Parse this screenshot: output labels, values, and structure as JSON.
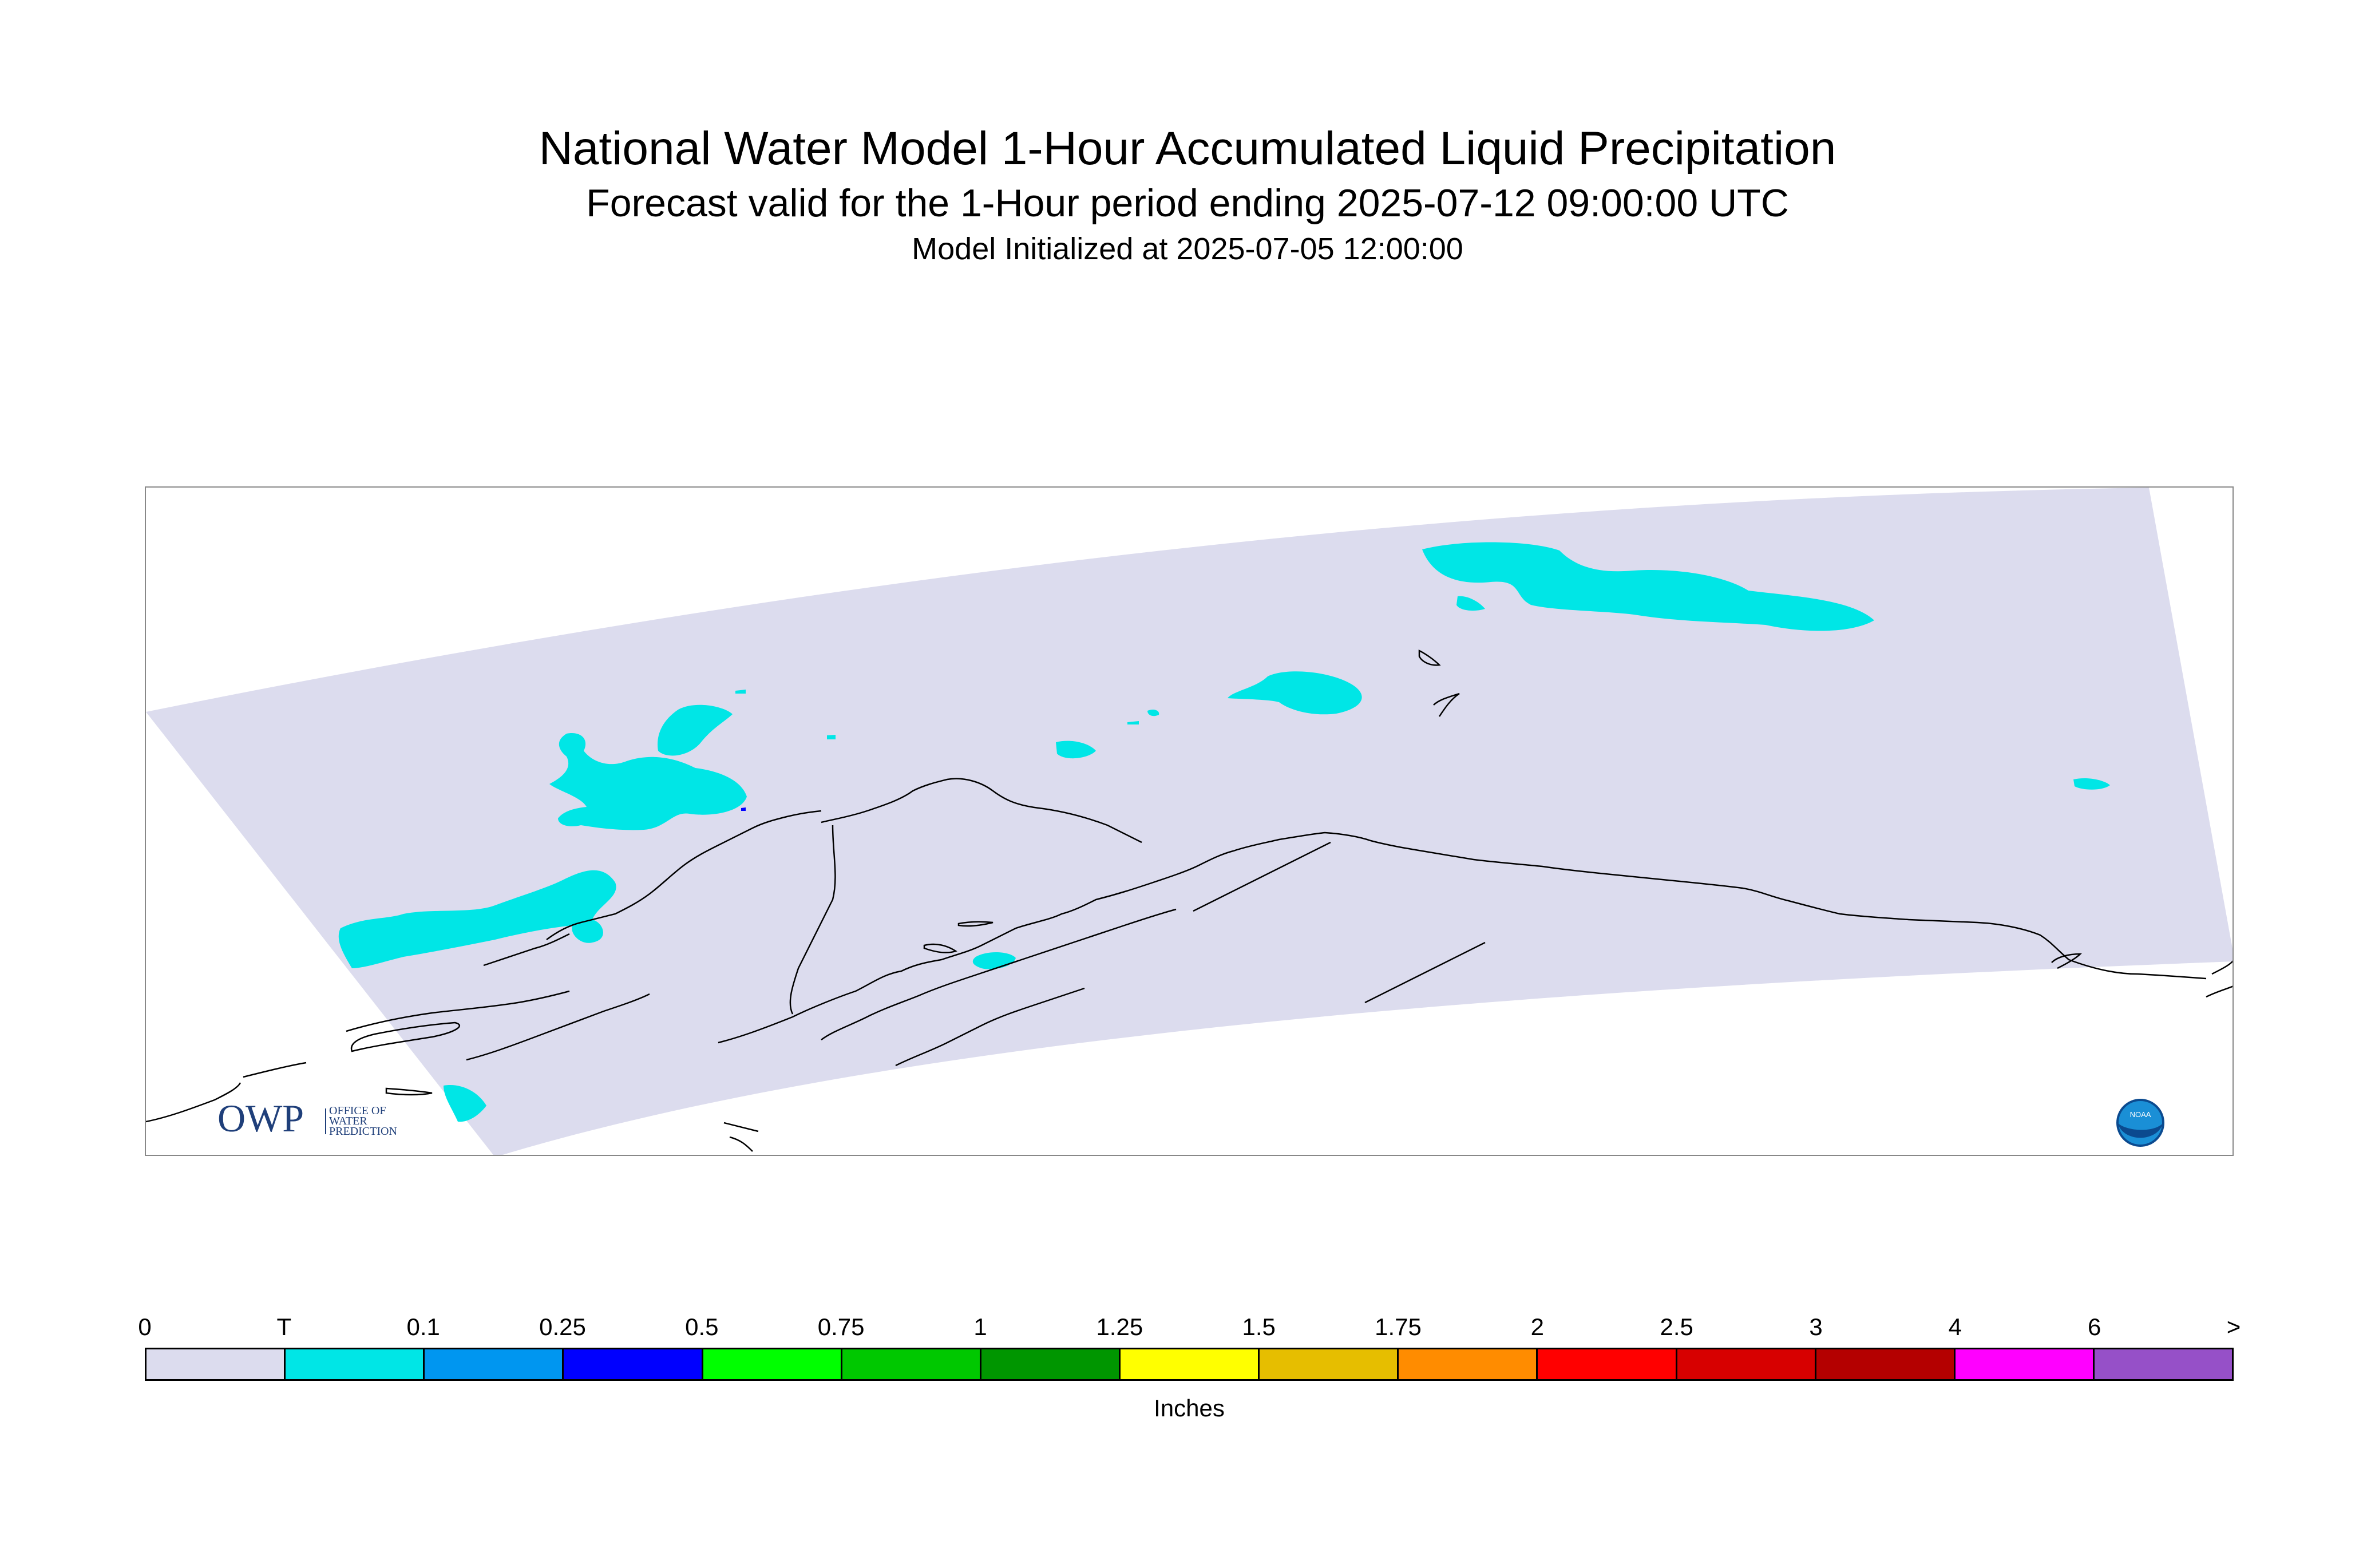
{
  "header": {
    "title": "National Water Model 1-Hour Accumulated Liquid Precipitation",
    "subtitle": "Forecast valid for the 1-Hour period ending 2025-07-12 09:00:00 UTC",
    "init": "Model Initialized at 2025-07-05 12:00:00"
  },
  "map": {
    "domain_fill": "#dcdcee",
    "precip_color_trace": "#00e6e6",
    "precip_color_025": "#0000ff",
    "coast_color": "#000000"
  },
  "logos": {
    "owp_text": "OWP",
    "owp_sub_1": "OFFICE OF",
    "owp_sub_2": "WATER",
    "owp_sub_3": "PREDICTION",
    "noaa_text": "NOAA"
  },
  "legend": {
    "tick_labels": [
      "0",
      "T",
      "0.1",
      "0.25",
      "0.5",
      "0.75",
      "1",
      "1.25",
      "1.5",
      "1.75",
      "2",
      "2.5",
      "3",
      "4",
      "6",
      ">"
    ],
    "colors": [
      "#dcdcee",
      "#00e6e6",
      "#0096f0",
      "#0000ff",
      "#00ff00",
      "#00c800",
      "#009600",
      "#ffff00",
      "#e6be00",
      "#ff8c00",
      "#ff0000",
      "#d70000",
      "#b40000",
      "#ff00ff",
      "#9650c8"
    ],
    "unit": "Inches"
  }
}
